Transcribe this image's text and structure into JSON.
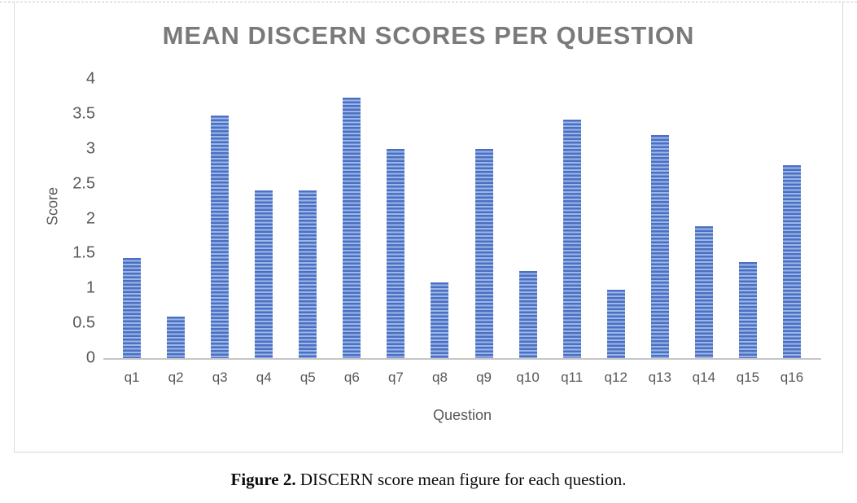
{
  "figure": {
    "caption_label": "Figure 2.",
    "caption_text": "DISCERN score mean figure for each question."
  },
  "chart_data": {
    "type": "bar",
    "title": "MEAN DISCERN SCORES PER QUESTION",
    "xlabel": "Question",
    "ylabel": "Score",
    "categories": [
      "q1",
      "q2",
      "q3",
      "q4",
      "q5",
      "q6",
      "q7",
      "q8",
      "q9",
      "q10",
      "q11",
      "q12",
      "q13",
      "q14",
      "q15",
      "q16"
    ],
    "values": [
      1.43,
      0.59,
      3.47,
      2.4,
      2.4,
      3.73,
      3.0,
      1.08,
      3.0,
      1.25,
      3.42,
      0.98,
      3.2,
      1.89,
      1.38,
      2.76
    ],
    "ylim": [
      0,
      4
    ],
    "y_ticks": [
      0,
      0.5,
      1,
      1.5,
      2,
      2.5,
      3,
      3.5,
      4
    ],
    "y_tick_labels": [
      "0",
      "0.5",
      "1",
      "1.5",
      "2",
      "2.5",
      "3",
      "3.5",
      "4"
    ],
    "grid": false,
    "legend": "none",
    "colors": {
      "bar_stripe_dark": "#4a70c4",
      "bar_stripe_light": "#9db6e6",
      "axis_line": "#c6c6c6",
      "title_text": "#7a7a7a",
      "axis_text": "#595959"
    }
  }
}
